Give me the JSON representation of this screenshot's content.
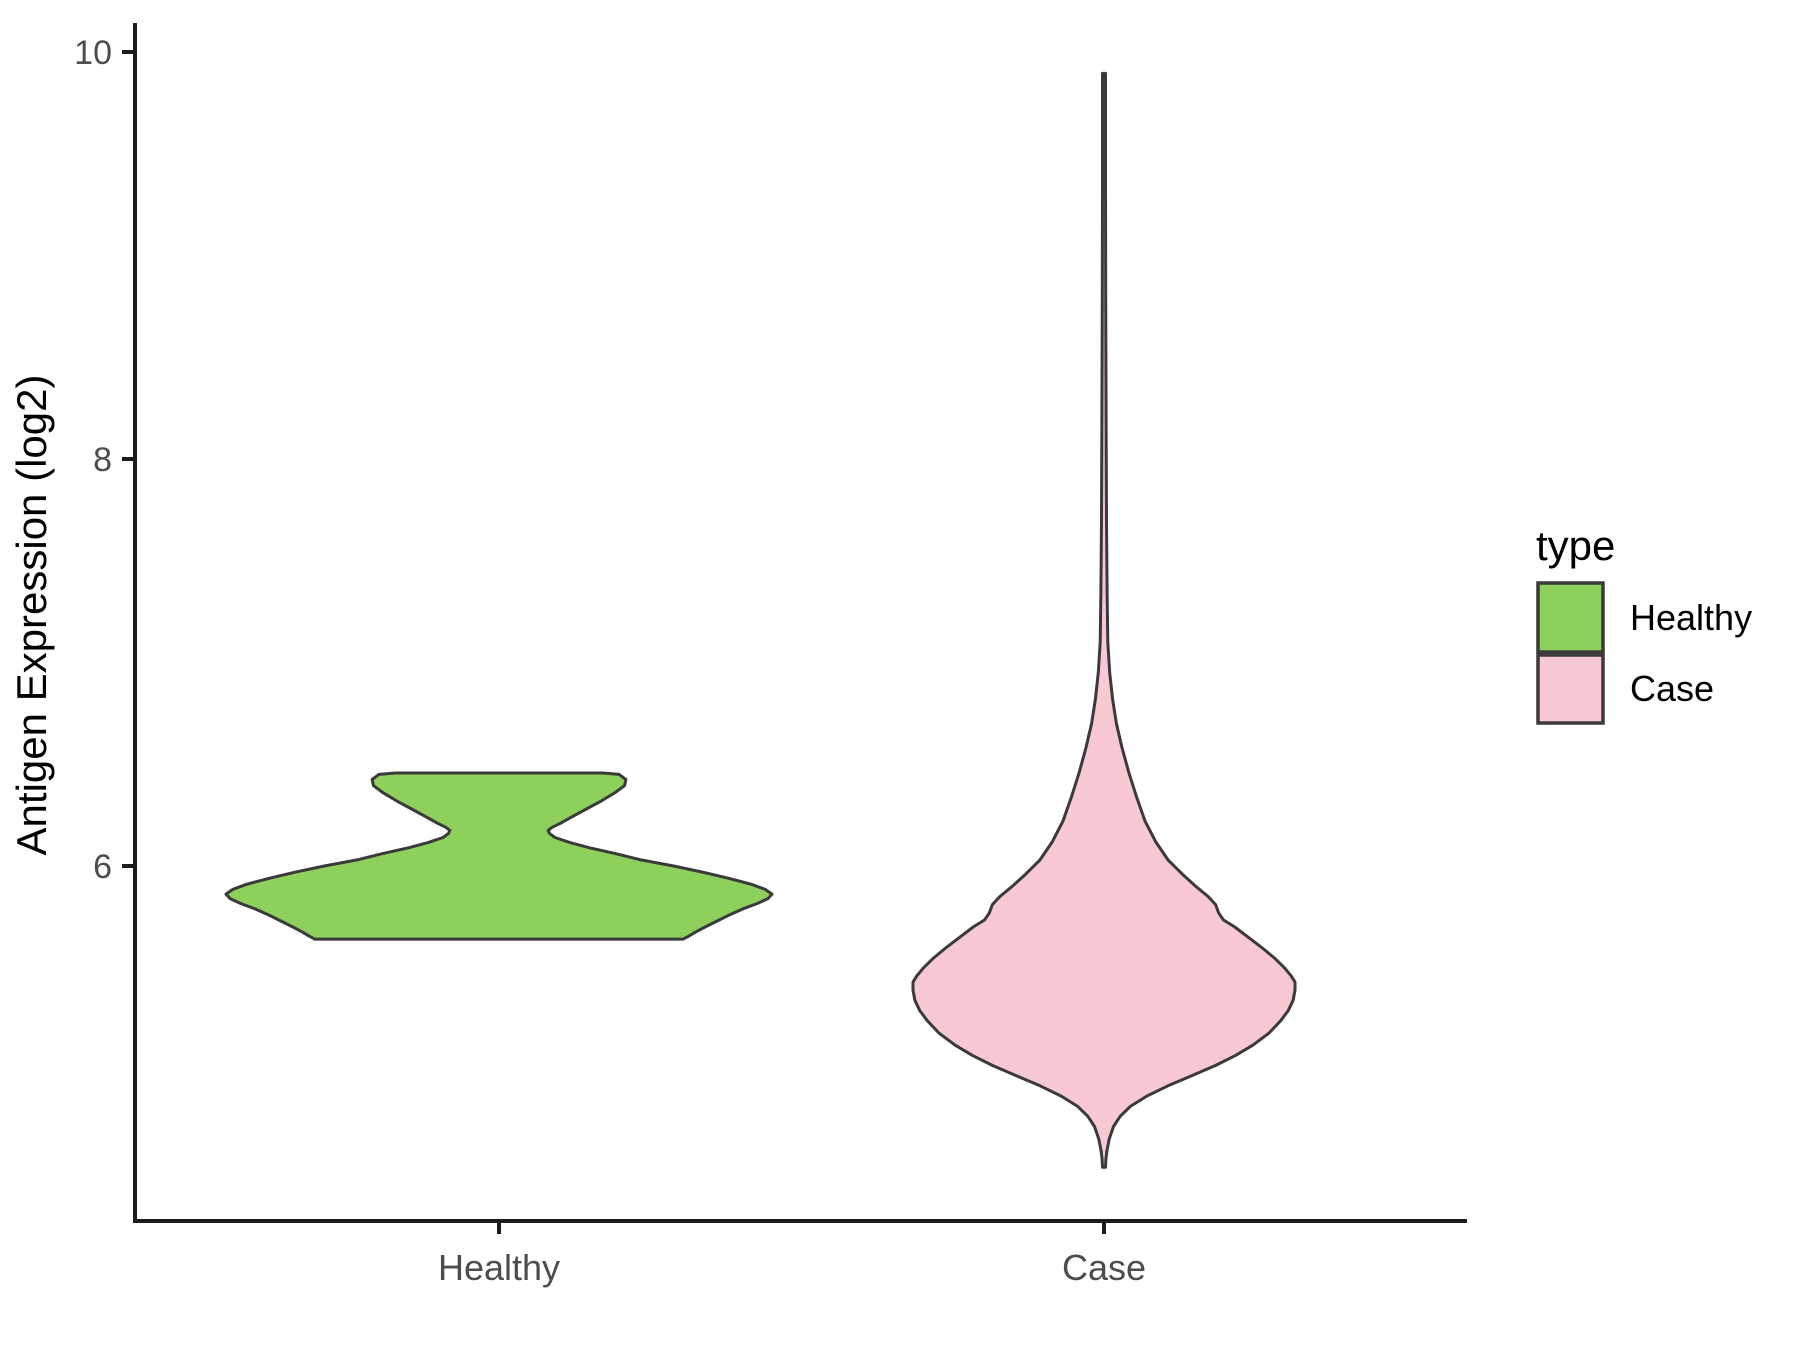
{
  "figure": {
    "y_axis": {
      "title": "Antigen Expression (log2)",
      "tick_labels": [
        "10",
        "8",
        "6"
      ]
    },
    "x_axis": {
      "title": "",
      "tick_labels": [
        "Healthy",
        "Case"
      ]
    },
    "legend": {
      "title": "type",
      "items": [
        {
          "label": "Healthy",
          "color": "#8dd15c"
        },
        {
          "label": "Case",
          "color": "#f8c8d3"
        }
      ]
    }
  },
  "chart_data": {
    "type": "violin",
    "title": "",
    "xlabel": "",
    "ylabel": "Antigen Expression (log2)",
    "categories": [
      "Healthy",
      "Case"
    ],
    "y_ticks": [
      6,
      8,
      10
    ],
    "ylim_shown": [
      4.2,
      10.1
    ],
    "grid": "off",
    "legend_position": "right",
    "outline_color": "#3a3a3a",
    "axis_color": "#1c1c1c",
    "tick_label_color": "#4d4d4d",
    "series": [
      {
        "name": "Healthy",
        "color": "#8dd15c",
        "min_value": 5.64,
        "max_value": 6.46,
        "peak_density_value": 5.86,
        "shape_note": "bimodal: wide lobe ~5.9, narrow upper lobe ~6.3-6.46, neck at ~6.18, flat truncated top and bottom",
        "profile": [
          [
            6.457,
            0.38
          ],
          [
            6.45,
            0.44
          ],
          [
            6.425,
            0.465
          ],
          [
            6.395,
            0.46
          ],
          [
            6.36,
            0.425
          ],
          [
            6.32,
            0.375
          ],
          [
            6.28,
            0.32
          ],
          [
            6.24,
            0.265
          ],
          [
            6.21,
            0.225
          ],
          [
            6.19,
            0.195
          ],
          [
            6.175,
            0.18
          ],
          [
            6.16,
            0.185
          ],
          [
            6.14,
            0.205
          ],
          [
            6.115,
            0.26
          ],
          [
            6.09,
            0.33
          ],
          [
            6.06,
            0.43
          ],
          [
            6.03,
            0.52
          ],
          [
            6.0,
            0.64
          ],
          [
            5.97,
            0.745
          ],
          [
            5.94,
            0.84
          ],
          [
            5.91,
            0.925
          ],
          [
            5.885,
            0.975
          ],
          [
            5.862,
            1.0
          ],
          [
            5.84,
            0.985
          ],
          [
            5.815,
            0.945
          ],
          [
            5.79,
            0.895
          ],
          [
            5.76,
            0.845
          ],
          [
            5.73,
            0.8
          ],
          [
            5.7,
            0.755
          ],
          [
            5.675,
            0.72
          ],
          [
            5.655,
            0.695
          ],
          [
            5.641,
            0.675
          ]
        ]
      },
      {
        "name": "Case",
        "color": "#f8c8d3",
        "min_value": 4.52,
        "max_value": 9.9,
        "peak_density_value": 5.43,
        "shape_note": "long thin upper tail to ~9.9, diamond-shaped body centered ~5.4, narrow bottom tip at ~4.5",
        "profile": [
          [
            9.895,
            0.008
          ],
          [
            9.4,
            0.008
          ],
          [
            8.8,
            0.009
          ],
          [
            8.2,
            0.011
          ],
          [
            7.7,
            0.013
          ],
          [
            7.35,
            0.016
          ],
          [
            7.1,
            0.02
          ],
          [
            6.95,
            0.03
          ],
          [
            6.82,
            0.045
          ],
          [
            6.7,
            0.065
          ],
          [
            6.58,
            0.095
          ],
          [
            6.46,
            0.13
          ],
          [
            6.34,
            0.17
          ],
          [
            6.22,
            0.215
          ],
          [
            6.12,
            0.27
          ],
          [
            6.03,
            0.335
          ],
          [
            5.96,
            0.41
          ],
          [
            5.9,
            0.48
          ],
          [
            5.85,
            0.545
          ],
          [
            5.81,
            0.585
          ],
          [
            5.77,
            0.6
          ],
          [
            5.735,
            0.625
          ],
          [
            5.7,
            0.685
          ],
          [
            5.65,
            0.755
          ],
          [
            5.6,
            0.825
          ],
          [
            5.55,
            0.89
          ],
          [
            5.5,
            0.945
          ],
          [
            5.46,
            0.98
          ],
          [
            5.43,
            1.0
          ],
          [
            5.39,
            1.0
          ],
          [
            5.34,
            0.99
          ],
          [
            5.29,
            0.965
          ],
          [
            5.24,
            0.925
          ],
          [
            5.18,
            0.865
          ],
          [
            5.12,
            0.78
          ],
          [
            5.07,
            0.69
          ],
          [
            5.02,
            0.585
          ],
          [
            4.97,
            0.46
          ],
          [
            4.92,
            0.335
          ],
          [
            4.87,
            0.225
          ],
          [
            4.82,
            0.14
          ],
          [
            4.77,
            0.085
          ],
          [
            4.72,
            0.05
          ],
          [
            4.66,
            0.028
          ],
          [
            4.6,
            0.015
          ],
          [
            4.56,
            0.01
          ],
          [
            4.52,
            0.008
          ]
        ]
      }
    ]
  }
}
